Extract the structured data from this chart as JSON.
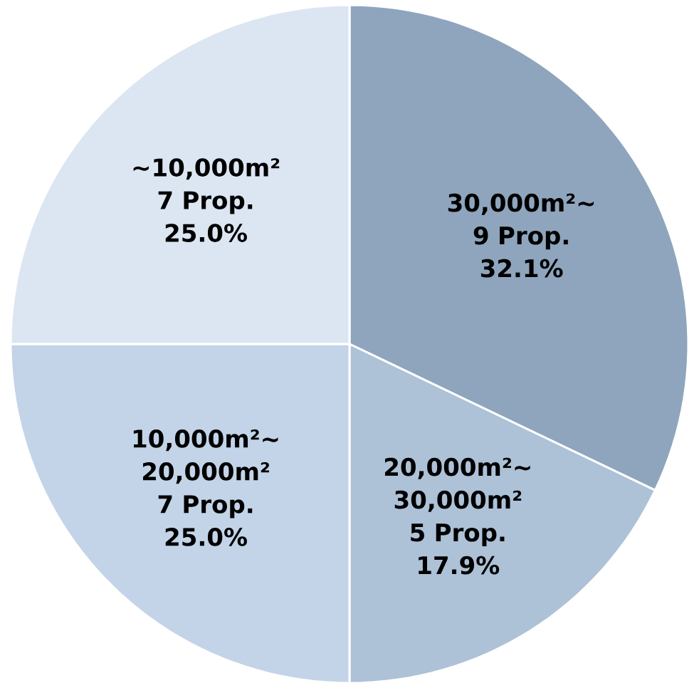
{
  "chart_data": {
    "type": "pie",
    "categories": [
      "30,000m²~",
      "20,000m²~ 30,000m²",
      "10,000m²~ 20,000m²",
      "~10,000m²"
    ],
    "values": [
      32.1,
      17.9,
      25.0,
      25.0
    ],
    "value_labels": [
      "9 Prop. 32.1%",
      "5 Prop. 17.9%",
      "7 Prop. 25.0%",
      "7 Prop. 25.0%"
    ],
    "colors": [
      "#8ea5bd",
      "#adc1d7",
      "#c3d4e8",
      "#dce6f2"
    ]
  }
}
